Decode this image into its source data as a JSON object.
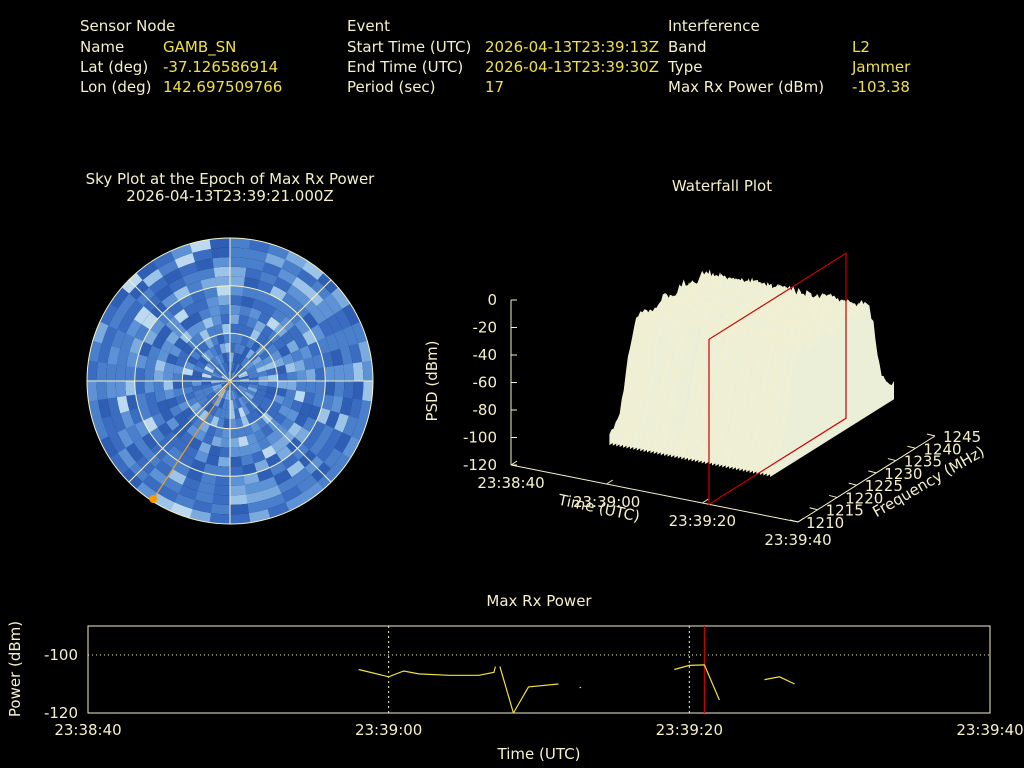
{
  "header": {
    "sensor": {
      "heading": "Sensor Node",
      "rows": [
        {
          "label": "Name",
          "value": "GAMB_SN"
        },
        {
          "label": "Lat (deg)",
          "value": "-37.126586914"
        },
        {
          "label": "Lon (deg)",
          "value": "142.697509766"
        }
      ]
    },
    "event": {
      "heading": "Event",
      "rows": [
        {
          "label": "Start Time (UTC)",
          "value": "2026-04-13T23:39:13Z"
        },
        {
          "label": "End Time (UTC)",
          "value": "2026-04-13T23:39:30Z"
        },
        {
          "label": "Period (sec)",
          "value": "17"
        }
      ]
    },
    "interference": {
      "heading": "Interference",
      "rows": [
        {
          "label": "Band",
          "value": "L2"
        },
        {
          "label": "Type",
          "value": "Jammer"
        },
        {
          "label": "Max Rx Power (dBm)",
          "value": "-103.38"
        }
      ]
    }
  },
  "colors": {
    "background": "#000000",
    "label": "#f5f0c8",
    "value": "#f0e040",
    "marker_line": "#cc0000",
    "sky_marker": "#ff9900",
    "series": "#f0e040"
  },
  "chart_data": [
    {
      "type": "heatmap",
      "title": "Sky Plot at the Epoch of Max Rx Power",
      "subtitle": "2026-04-13T23:39:21.000Z",
      "projection": "polar",
      "rings": 3,
      "spokes": 8,
      "marker": {
        "azimuth_deg": 213,
        "elevation_deg": 0
      }
    },
    {
      "type": "area",
      "title": "Waterfall Plot",
      "zlabel": "PSD (dBm)",
      "xlabel": "Time (UTC)",
      "ylabel": "Frequency (MHz)",
      "zlim": [
        -120,
        0
      ],
      "z_ticks": [
        "0",
        "-20",
        "-40",
        "-60",
        "-80",
        "-100",
        "-120"
      ],
      "time_ticks": [
        "23:38:40",
        "23:39:00",
        "23:39:20",
        "23:39:40"
      ],
      "freq_ticks": [
        "1210",
        "1215",
        "1220",
        "1225",
        "1230",
        "1235",
        "1240",
        "1245"
      ],
      "freq_range": [
        1210,
        1245
      ],
      "peak_psd_dbm": -15,
      "floor_psd_dbm": -85,
      "band_edges_mhz": [
        1216,
        1239
      ],
      "selected_time": "23:39:21"
    },
    {
      "type": "line",
      "title": "Max Rx Power",
      "xlabel": "Time (UTC)",
      "ylabel": "Power (dBm)",
      "ylim": [
        -120,
        -90
      ],
      "y_ticks": [
        "-100",
        "-120"
      ],
      "x_ticks": [
        "23:38:40",
        "23:39:00",
        "23:39:20",
        "23:39:40"
      ],
      "marker_time": "23:39:21",
      "series": [
        {
          "segments": [
            [
              [
                "23:38:58",
                -105
              ],
              [
                "23:39:00",
                -107.5
              ],
              [
                "23:39:01",
                -105.5
              ],
              [
                "23:39:02",
                -106.5
              ],
              [
                "23:39:04",
                -107
              ],
              [
                "23:39:06",
                -107
              ],
              [
                "23:39:07",
                -106
              ],
              [
                "23:39:07.1",
                -104
              ]
            ],
            [
              [
                "23:39:07.4",
                -104
              ],
              [
                "23:39:08.3",
                -120
              ]
            ],
            [
              [
                "23:39:08.3",
                -120
              ],
              [
                "23:39:09.3",
                -111
              ],
              [
                "23:39:11.3",
                -110
              ]
            ],
            [
              [
                "23:39:12.7",
                -111.2
              ],
              [
                "23:39:12.8",
                -111.2
              ]
            ],
            [
              [
                "23:39:19",
                -105
              ],
              [
                "23:39:20",
                -103.6
              ],
              [
                "23:39:21",
                -103.4
              ],
              [
                "23:39:22",
                -115.5
              ]
            ],
            [
              [
                "23:39:25",
                -108.5
              ],
              [
                "23:39:26",
                -107.5
              ],
              [
                "23:39:27",
                -110
              ]
            ]
          ]
        }
      ]
    }
  ]
}
